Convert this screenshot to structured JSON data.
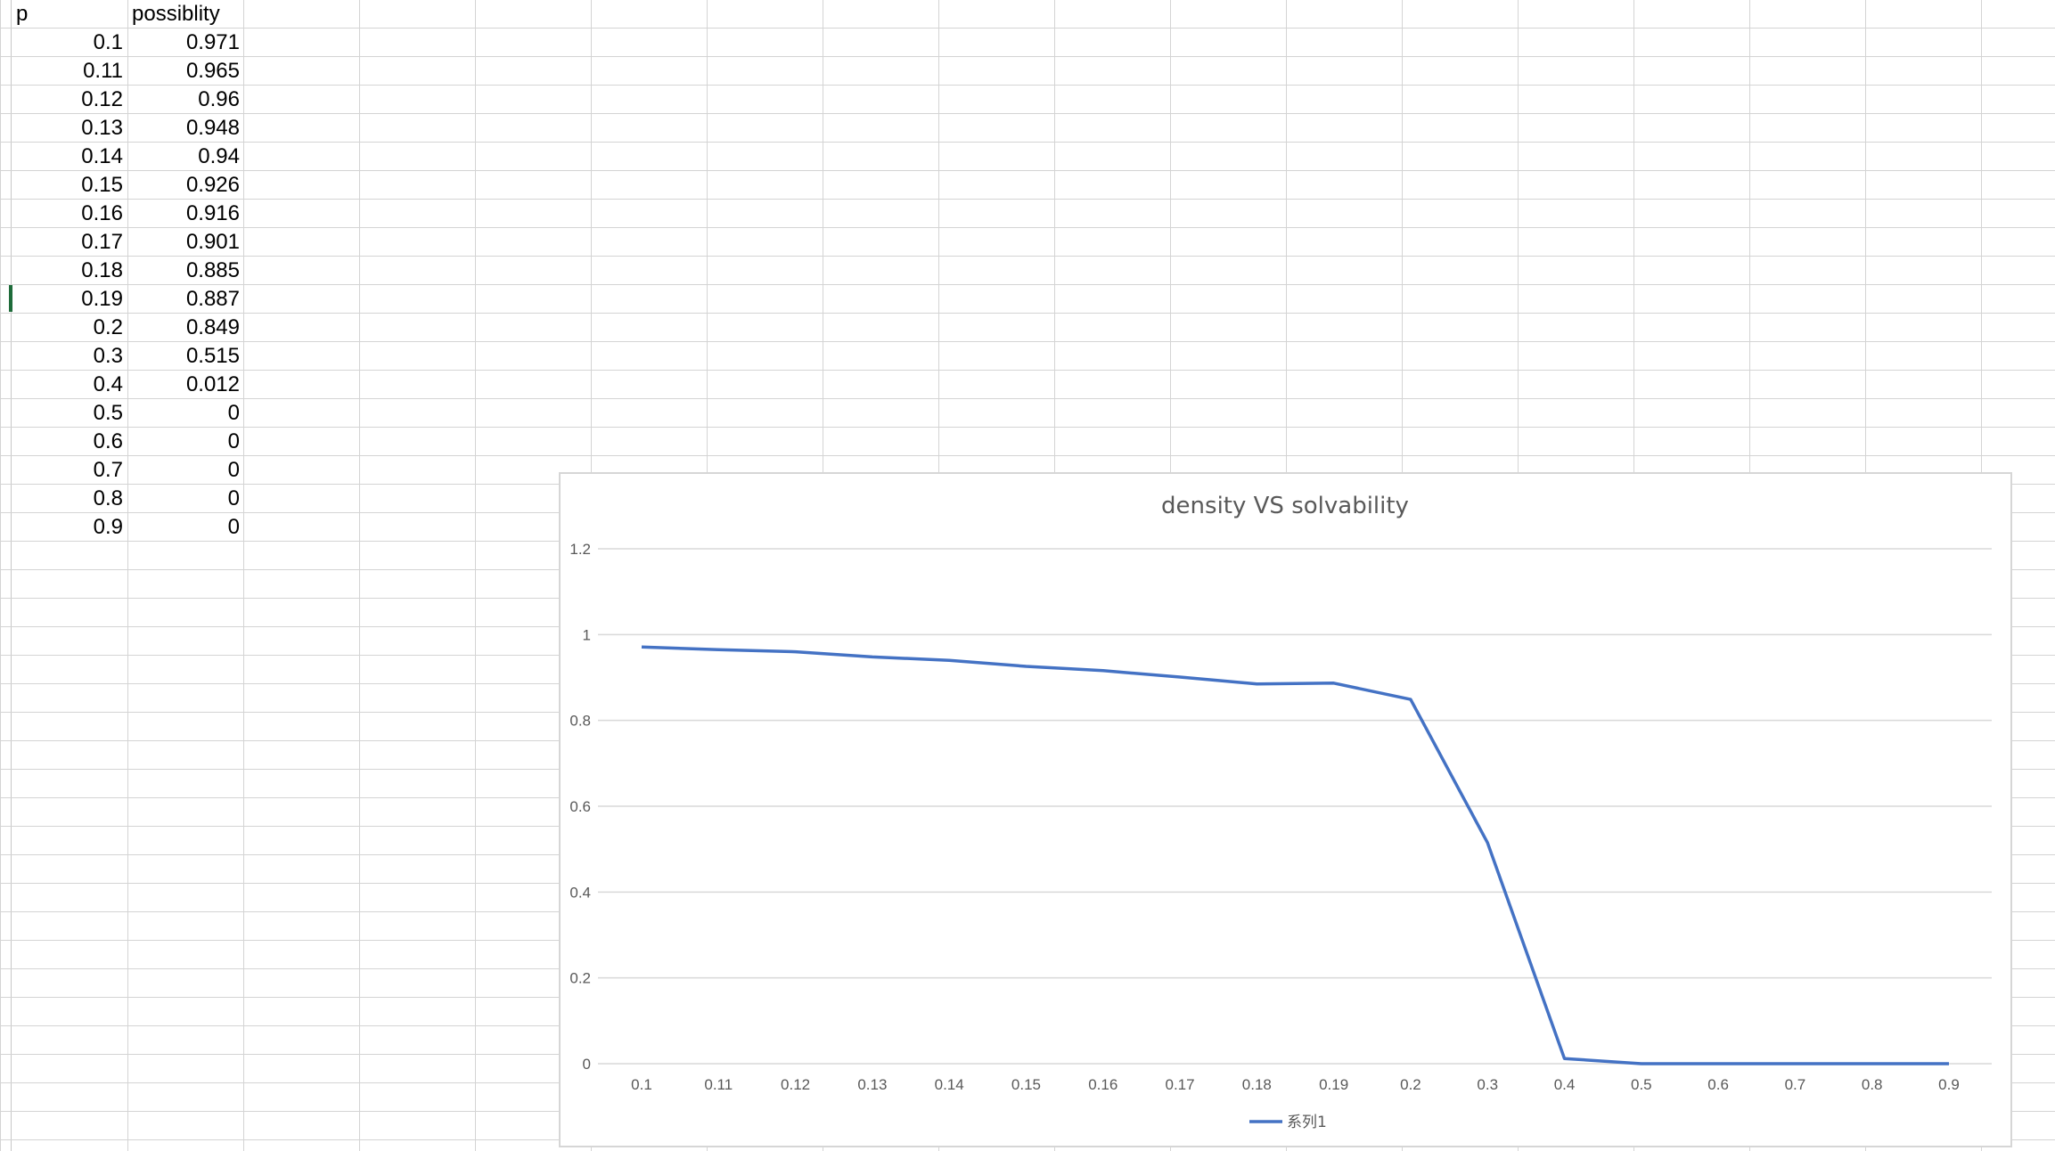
{
  "sheet": {
    "headers": [
      "p",
      "possiblity"
    ],
    "rows": [
      [
        "0.1",
        "0.971"
      ],
      [
        "0.11",
        "0.965"
      ],
      [
        "0.12",
        "0.96"
      ],
      [
        "0.13",
        "0.948"
      ],
      [
        "0.14",
        "0.94"
      ],
      [
        "0.15",
        "0.926"
      ],
      [
        "0.16",
        "0.916"
      ],
      [
        "0.17",
        "0.901"
      ],
      [
        "0.18",
        "0.885"
      ],
      [
        "0.19",
        "0.887"
      ],
      [
        "0.2",
        "0.849"
      ],
      [
        "0.3",
        "0.515"
      ],
      [
        "0.4",
        "0.012"
      ],
      [
        "0.5",
        "0"
      ],
      [
        "0.6",
        "0"
      ],
      [
        "0.7",
        "0"
      ],
      [
        "0.8",
        "0"
      ],
      [
        "0.9",
        "0"
      ]
    ],
    "active_cell_row": 10
  },
  "chart_data": {
    "type": "line",
    "title": "density VS solvability",
    "categories": [
      "0.1",
      "0.11",
      "0.12",
      "0.13",
      "0.14",
      "0.15",
      "0.16",
      "0.17",
      "0.18",
      "0.19",
      "0.2",
      "0.3",
      "0.4",
      "0.5",
      "0.6",
      "0.7",
      "0.8",
      "0.9"
    ],
    "series": [
      {
        "name": "系列1",
        "color": "#4472c4",
        "values": [
          0.971,
          0.965,
          0.96,
          0.948,
          0.94,
          0.926,
          0.916,
          0.901,
          0.885,
          0.887,
          0.849,
          0.515,
          0.012,
          0,
          0,
          0,
          0,
          0
        ]
      }
    ],
    "ylim": [
      0,
      1.2
    ],
    "yticks": [
      "0",
      "0.2",
      "0.4",
      "0.6",
      "0.8",
      "1",
      "1.2"
    ],
    "xlabel": "",
    "ylabel": "",
    "grid": true,
    "legend": "bottom"
  }
}
